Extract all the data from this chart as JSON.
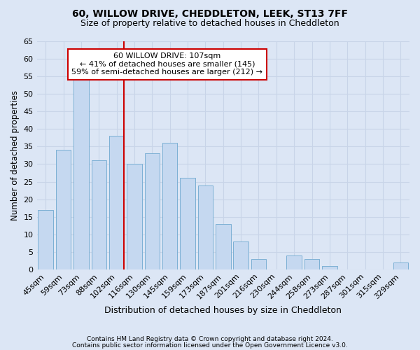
{
  "title": "60, WILLOW DRIVE, CHEDDLETON, LEEK, ST13 7FF",
  "subtitle": "Size of property relative to detached houses in Cheddleton",
  "xlabel": "Distribution of detached houses by size in Cheddleton",
  "ylabel": "Number of detached properties",
  "categories": [
    "45sqm",
    "59sqm",
    "73sqm",
    "88sqm",
    "102sqm",
    "116sqm",
    "130sqm",
    "145sqm",
    "159sqm",
    "173sqm",
    "187sqm",
    "201sqm",
    "216sqm",
    "230sqm",
    "244sqm",
    "258sqm",
    "273sqm",
    "287sqm",
    "301sqm",
    "315sqm",
    "329sqm"
  ],
  "values": [
    17,
    34,
    54,
    31,
    38,
    30,
    33,
    36,
    26,
    24,
    13,
    8,
    3,
    0,
    4,
    3,
    1,
    0,
    0,
    0,
    2
  ],
  "bar_color": "#c5d8f0",
  "bar_edge_color": "#7bafd4",
  "grid_color": "#c8d4e8",
  "background_color": "#dce6f5",
  "vline_x_idx": 4,
  "vline_color": "#cc0000",
  "annotation_text": "60 WILLOW DRIVE: 107sqm\n← 41% of detached houses are smaller (145)\n59% of semi-detached houses are larger (212) →",
  "annotation_box_color": "#ffffff",
  "annotation_box_edge_color": "#cc0000",
  "footnote1": "Contains HM Land Registry data © Crown copyright and database right 2024.",
  "footnote2": "Contains public sector information licensed under the Open Government Licence v3.0.",
  "ylim": [
    0,
    65
  ],
  "yticks": [
    0,
    5,
    10,
    15,
    20,
    25,
    30,
    35,
    40,
    45,
    50,
    55,
    60,
    65
  ],
  "title_fontsize": 10,
  "subtitle_fontsize": 9,
  "xlabel_fontsize": 9,
  "ylabel_fontsize": 8.5,
  "tick_fontsize": 8,
  "annotation_fontsize": 8,
  "footnote_fontsize": 6.5
}
